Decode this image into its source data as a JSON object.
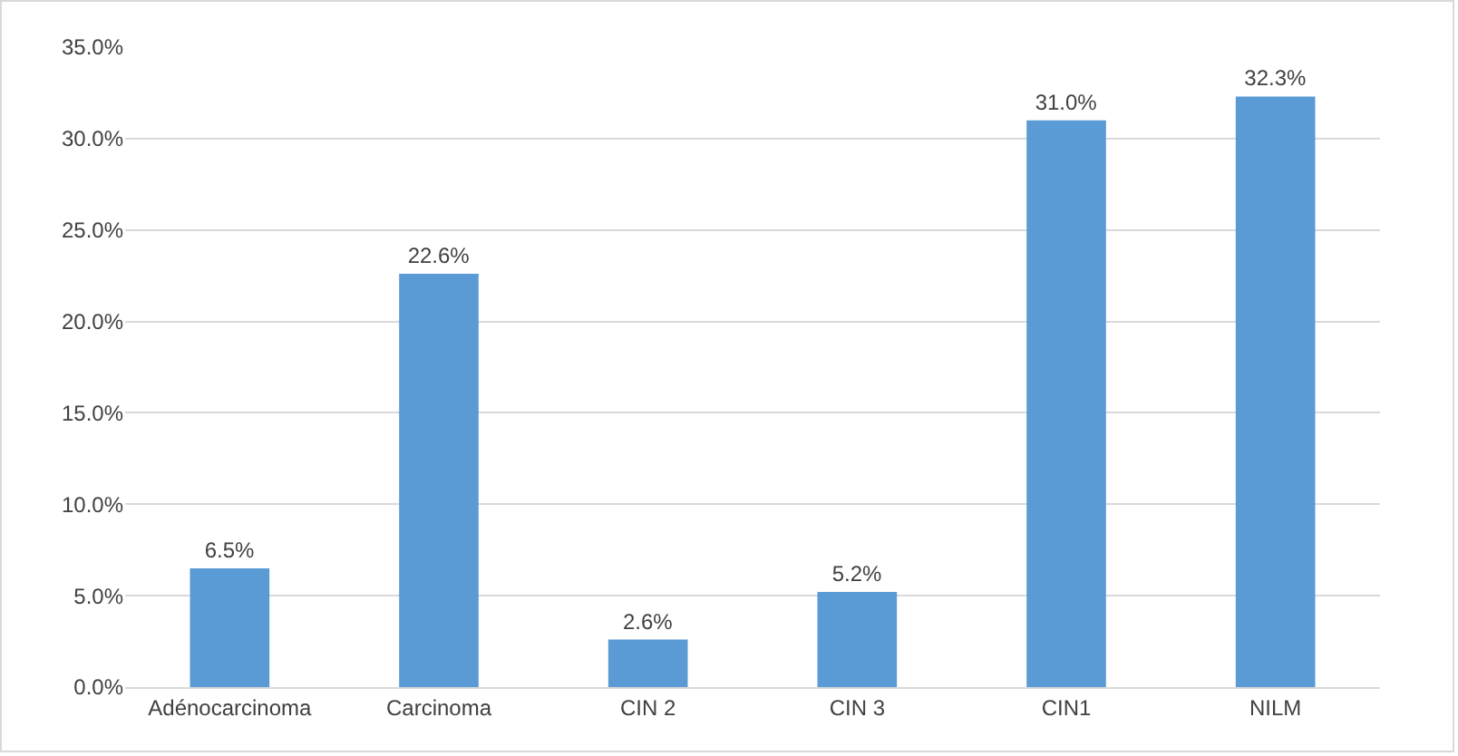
{
  "chart_data": {
    "type": "bar",
    "categories": [
      "Adénocarcinoma",
      "Carcinoma",
      "CIN 2",
      "CIN 3",
      "CIN1",
      "NILM"
    ],
    "values": [
      6.5,
      22.6,
      2.6,
      5.2,
      31.0,
      32.3
    ],
    "value_labels": [
      "6.5%",
      "22.6%",
      "2.6%",
      "5.2%",
      "31.0%",
      "32.3%"
    ],
    "color": "#5b9bd5",
    "ylim": [
      0,
      35
    ],
    "yticks": [
      {
        "value": 0,
        "label": "0.0%"
      },
      {
        "value": 5,
        "label": "5.0%"
      },
      {
        "value": 10,
        "label": "10.0%"
      },
      {
        "value": 15,
        "label": "15.0%"
      },
      {
        "value": 20,
        "label": "20.0%"
      },
      {
        "value": 25,
        "label": "25.0%"
      },
      {
        "value": 30,
        "label": "30.0%"
      },
      {
        "value": 35,
        "label": "35.0%"
      }
    ],
    "grid": "y"
  }
}
